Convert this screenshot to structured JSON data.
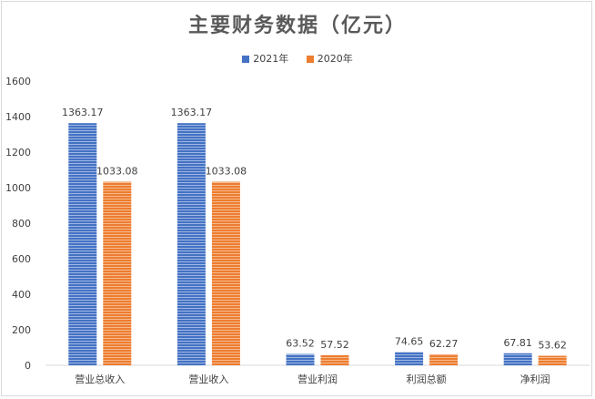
{
  "chart_data": {
    "type": "bar",
    "title": "主要财务数据（亿元）",
    "categories": [
      "营业总收入",
      "营业收入",
      "营业利润",
      "利润总额",
      "净利润"
    ],
    "series": [
      {
        "name": "2021年",
        "color": "#4472c4",
        "values": [
          1363.17,
          1363.17,
          63.52,
          74.65,
          67.81
        ],
        "labels": [
          "1363.17",
          "1363.17",
          "63.52",
          "74.65",
          "67.81"
        ]
      },
      {
        "name": "2020年",
        "color": "#ed7d31",
        "values": [
          1033.08,
          1033.08,
          57.52,
          62.27,
          53.62
        ],
        "labels": [
          "1033.08",
          "1033.08",
          "57.52",
          "62.27",
          "53.62"
        ]
      }
    ],
    "ylim": [
      0,
      1600
    ],
    "yticks": [
      0,
      200,
      400,
      600,
      800,
      1000,
      1200,
      1400,
      1600
    ],
    "xlabel": "",
    "ylabel": "",
    "grid": false,
    "legend_position": "top"
  }
}
